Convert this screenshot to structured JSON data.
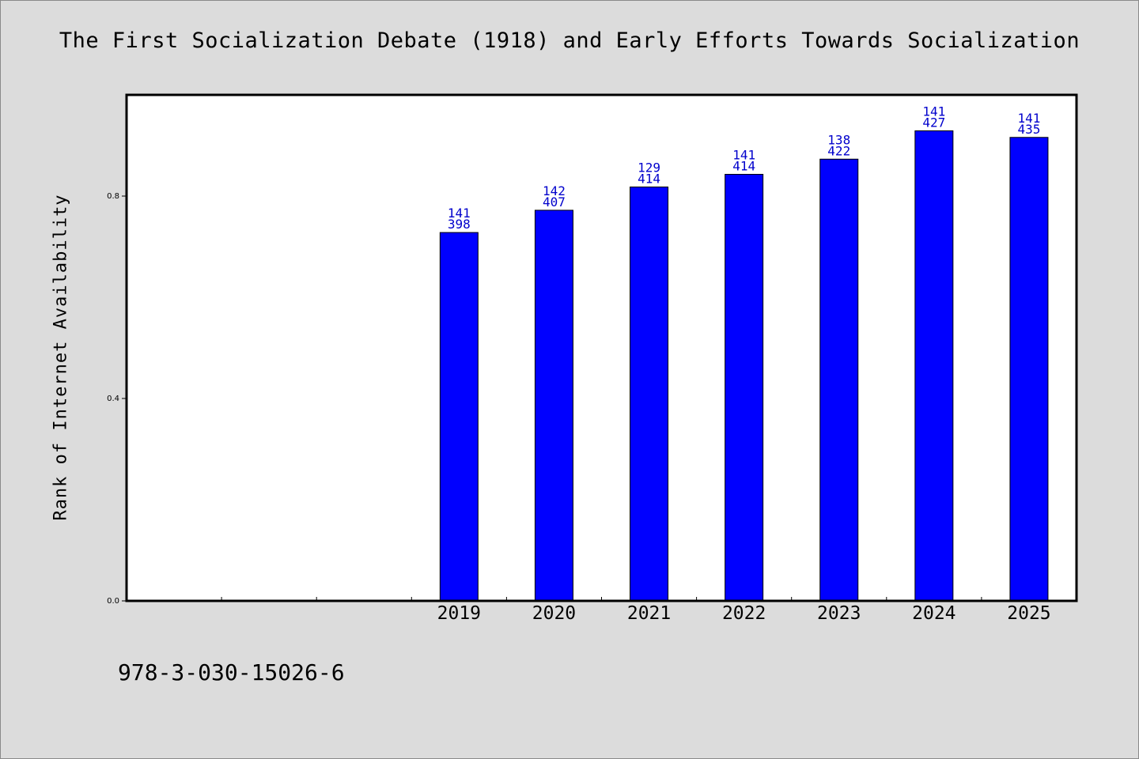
{
  "chart_data": {
    "type": "bar",
    "title": "The First Socialization Debate (1918) and Early Efforts Towards Socialization",
    "ylabel": "Rank of Internet Availability",
    "xlabel": "",
    "ylim": [
      0.0,
      1.0
    ],
    "yticks": [
      "0.0",
      "0.4",
      "0.8"
    ],
    "slot_count": 10,
    "categories": [
      "2019",
      "2020",
      "2021",
      "2022",
      "2023",
      "2024",
      "2025"
    ],
    "values": [
      0.728,
      0.772,
      0.818,
      0.843,
      0.873,
      0.929,
      0.916
    ],
    "bar_labels": [
      [
        "141",
        "398"
      ],
      [
        "142",
        "407"
      ],
      [
        "129",
        "414"
      ],
      [
        "141",
        "414"
      ],
      [
        "138",
        "422"
      ],
      [
        "141",
        "427"
      ],
      [
        "141",
        "435"
      ]
    ],
    "bar_color": "#0000ff",
    "label_color": "#0000cc",
    "grid": false
  },
  "footer": {
    "isbn": "978-3-030-15026-6"
  }
}
